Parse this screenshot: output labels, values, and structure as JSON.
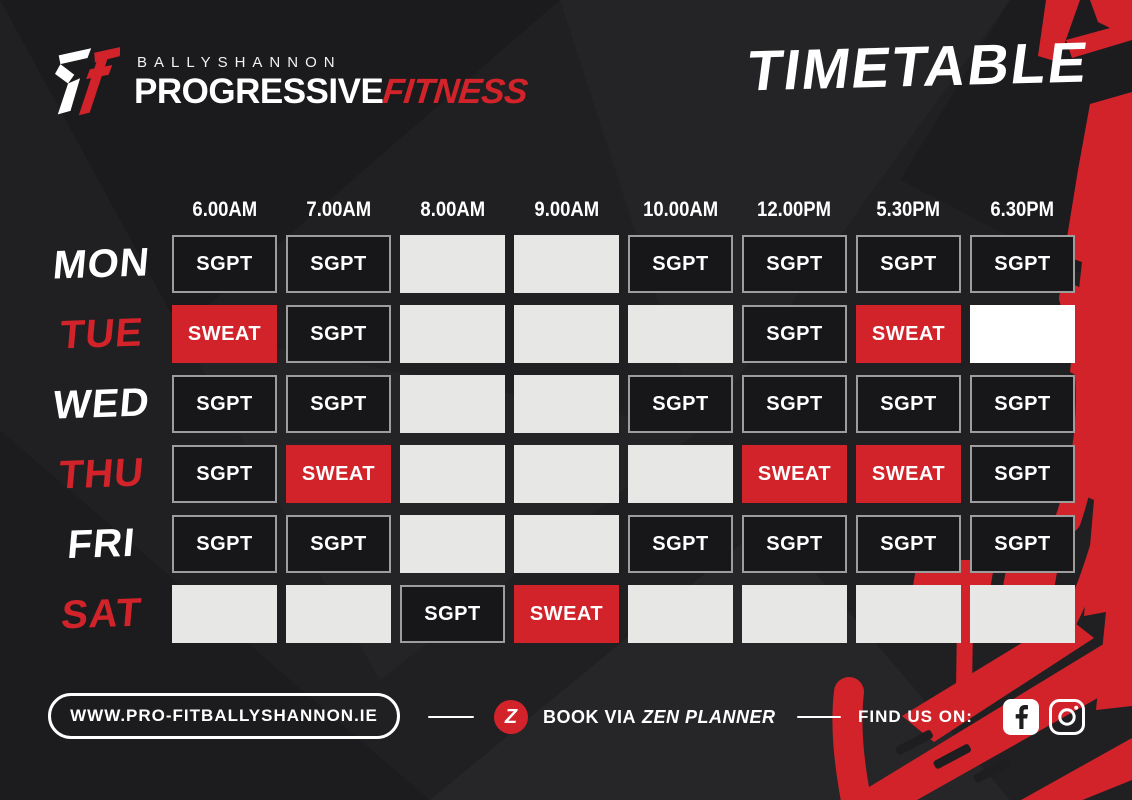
{
  "colors": {
    "red": "#d2232a",
    "cell-dark": "#17171a",
    "cell-empty": "#e7e7e6",
    "bg": "#202023"
  },
  "brand": {
    "icon": "pf-monogram-icon",
    "town": "BALLYSHANNON",
    "name_main": "PROGRESSIVE",
    "name_accent": "FITNESS"
  },
  "title": "TIMETABLE",
  "timetable": {
    "times": [
      "6.00AM",
      "7.00AM",
      "8.00AM",
      "9.00AM",
      "10.00AM",
      "12.00PM",
      "5.30PM",
      "6.30PM"
    ],
    "cell_labels": {
      "sgpt": "SGPT",
      "sweat": "SWEAT",
      "empty": "",
      "white": ""
    },
    "days": [
      {
        "label": "MON",
        "accent": false,
        "cells": [
          "sgpt",
          "sgpt",
          "empty",
          "empty",
          "sgpt",
          "sgpt",
          "sgpt",
          "sgpt"
        ]
      },
      {
        "label": "TUE",
        "accent": true,
        "cells": [
          "sweat",
          "sgpt",
          "empty",
          "empty",
          "empty",
          "sgpt",
          "sweat",
          "white"
        ]
      },
      {
        "label": "WED",
        "accent": false,
        "cells": [
          "sgpt",
          "sgpt",
          "empty",
          "empty",
          "sgpt",
          "sgpt",
          "sgpt",
          "sgpt"
        ]
      },
      {
        "label": "THU",
        "accent": true,
        "cells": [
          "sgpt",
          "sweat",
          "empty",
          "empty",
          "empty",
          "sweat",
          "sweat",
          "sgpt"
        ]
      },
      {
        "label": "FRI",
        "accent": false,
        "cells": [
          "sgpt",
          "sgpt",
          "empty",
          "empty",
          "sgpt",
          "sgpt",
          "sgpt",
          "sgpt"
        ]
      },
      {
        "label": "SAT",
        "accent": true,
        "cells": [
          "empty",
          "empty",
          "sgpt",
          "sweat",
          "empty",
          "empty",
          "empty",
          "empty"
        ]
      }
    ]
  },
  "footer": {
    "website": "WWW.PRO-FITBALLYSHANNON.IE",
    "zen_icon": "zen-planner-z-icon",
    "zen_badge_letter": "Z",
    "book_text": "BOOK VIA",
    "book_brand": "ZEN PLANNER",
    "find_us": "FIND US ON:",
    "social_icons": [
      "facebook-icon",
      "instagram-icon"
    ]
  }
}
